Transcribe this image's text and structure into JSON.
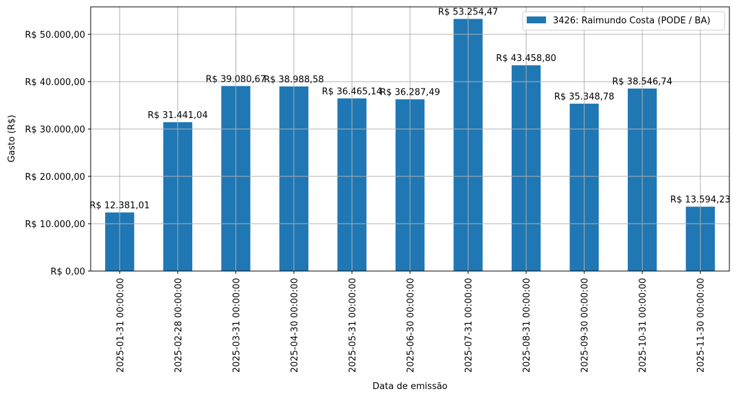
{
  "chart_data": {
    "type": "bar",
    "title": "",
    "xlabel": "Data de emissão",
    "ylabel": "Gasto (R$)",
    "ylim": [
      0,
      55800
    ],
    "grid": true,
    "legend_position": "upper right",
    "bar_color": "#1f77b4",
    "categories": [
      "2025-01-31 00:00:00",
      "2025-02-28 00:00:00",
      "2025-03-31 00:00:00",
      "2025-04-30 00:00:00",
      "2025-05-31 00:00:00",
      "2025-06-30 00:00:00",
      "2025-07-31 00:00:00",
      "2025-08-31 00:00:00",
      "2025-09-30 00:00:00",
      "2025-10-31 00:00:00",
      "2025-11-30 00:00:00"
    ],
    "series": [
      {
        "name": "3426: Raimundo Costa (PODE / BA)",
        "values": [
          12381.01,
          31441.04,
          39080.67,
          38988.58,
          36465.14,
          36287.49,
          53254.47,
          43458.8,
          35348.78,
          38546.74,
          13594.23
        ]
      }
    ],
    "data_labels": [
      "R$ 12.381,01",
      "R$ 31.441,04",
      "R$ 39.080,67",
      "R$ 38.988,58",
      "R$ 36.465,14",
      "R$ 36.287,49",
      "R$ 53.254,47",
      "R$ 43.458,80",
      "R$ 35.348,78",
      "R$ 38.546,74",
      "R$ 13.594,23"
    ],
    "yticks": [
      0,
      10000,
      20000,
      30000,
      40000,
      50000
    ],
    "ytick_labels": [
      "R$ 0,00",
      "R$ 10.000,00",
      "R$ 20.000,00",
      "R$ 30.000,00",
      "R$ 40.000,00",
      "R$ 50.000,00"
    ]
  }
}
